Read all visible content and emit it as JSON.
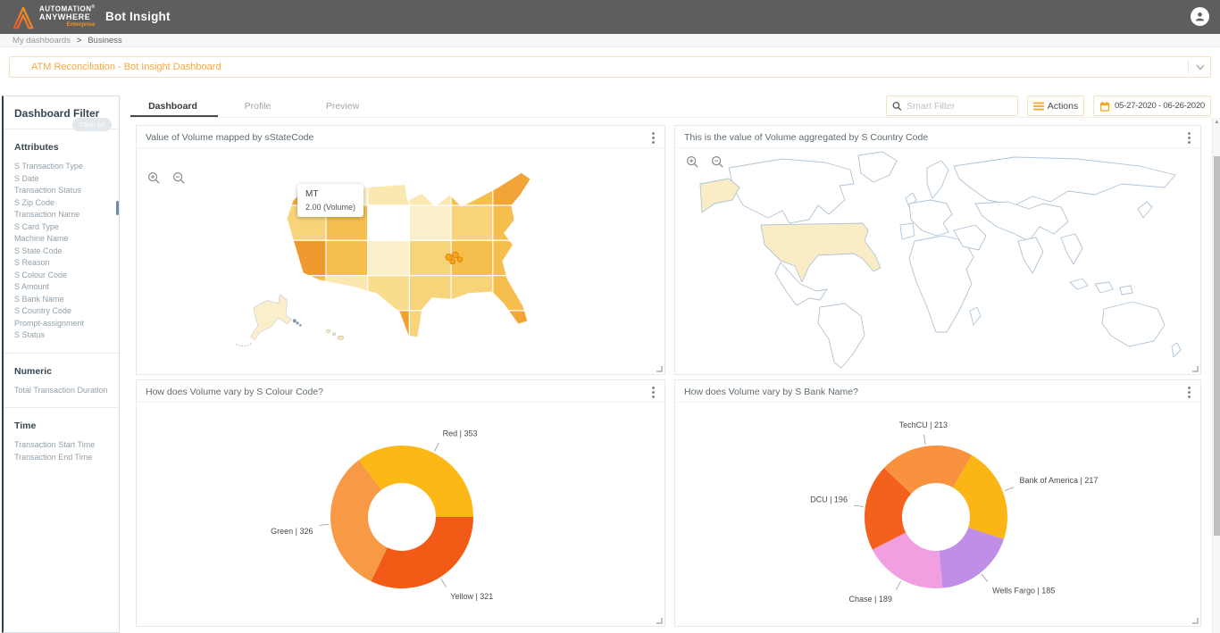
{
  "app": {
    "brand_line1": "AUTOMATION",
    "brand_line2": "ANYWHERE",
    "registered_mark": "®",
    "edition": "Enterprise",
    "module": "Bot Insight"
  },
  "breadcrumb": {
    "items": [
      "My dashboards",
      "Business"
    ],
    "separator": ">"
  },
  "dashboard_selector": {
    "value": "ATM Reconciliation - Bot Insight Dashboard"
  },
  "sidebar": {
    "title": "Dashboard Filter",
    "clear_all_label": "Clear All",
    "sections": [
      {
        "label": "Attributes",
        "items": [
          "S Transaction Type",
          "S Date",
          "Transaction Status",
          "S Zip Code",
          "Transaction Name",
          "S Card Type",
          "Machine Name",
          "S State Code",
          "S Reason",
          "S Colour Code",
          "S Amount",
          "S Bank Name",
          "S Country Code",
          "Prompt-assignment",
          "S Status"
        ]
      },
      {
        "label": "Numeric",
        "items": [
          "Total Transaction Duration"
        ]
      },
      {
        "label": "Time",
        "items": [
          "Transaction Start Time",
          "Transaction End Time"
        ]
      }
    ]
  },
  "tabs": [
    {
      "label": "Dashboard",
      "active": true
    },
    {
      "label": "Profile",
      "active": false
    },
    {
      "label": "Preview",
      "active": false
    }
  ],
  "toolbar": {
    "smart_filter_placeholder": "Smart Filter",
    "actions_label": "Actions",
    "date_range": "05-27-2020 - 06-26-2020"
  },
  "panels": [
    {
      "title": "Value of Volume mapped by sStateCode"
    },
    {
      "title": "This is the value of Volume aggregated by S Country Code"
    },
    {
      "title": "How does Volume vary by S Colour Code?"
    },
    {
      "title": "How does Volume vary by S Bank Name?"
    }
  ],
  "us_map_tooltip": {
    "state": "MT",
    "value_text": "2.00 (Volume)"
  },
  "colors": {
    "topbar": "#5E5E5E",
    "brand_orange": "#F5A623",
    "accent_border": "#F1E2C2",
    "selector_text": "#F8A93F",
    "world_outline": "#AFC3D6",
    "world_highlight": "#FAEDC6"
  },
  "chart_data": [
    {
      "type": "heatmap",
      "subtype": "choropleth-us-states",
      "title": "Value of Volume mapped by sStateCode",
      "metric": "Volume",
      "dimension": "sStateCode",
      "tooltip": {
        "state": "MT",
        "value": 2.0,
        "text": "2.00 (Volume)"
      },
      "selected_state": "KY",
      "palette": [
        "#FCF3D9",
        "#FBEFCB",
        "#FAE8B0",
        "#F9DD8C",
        "#F7D37A",
        "#F5BE4D",
        "#F3A83A",
        "#F2A032",
        "#EE9A2F"
      ]
    },
    {
      "type": "heatmap",
      "subtype": "choropleth-world",
      "title": "This is the value of Volume aggregated by S Country Code",
      "metric": "Volume",
      "dimension": "S Country Code",
      "highlighted_countries": [
        "United States"
      ],
      "highlight_color": "#FAEDC6",
      "outline_color": "#AFC3D6"
    },
    {
      "type": "pie",
      "subtype": "donut",
      "title": "How does Volume vary by S Colour Code?",
      "metric": "Volume",
      "dimension": "S Colour Code",
      "total": 1000,
      "start_angle": -37.1,
      "slices": [
        {
          "name": "Red",
          "value": 353,
          "label": "Red | 353",
          "color": "#FBB817"
        },
        {
          "name": "Yellow",
          "value": 321,
          "label": "Yellow | 321",
          "color": "#F25B16"
        },
        {
          "name": "Green",
          "value": 326,
          "label": "Green | 326",
          "color": "#F89A45"
        }
      ]
    },
    {
      "type": "pie",
      "subtype": "donut",
      "title": "How does Volume vary by S Bank Name?",
      "metric": "Volume",
      "dimension": "S Bank Name",
      "total": 1000,
      "start_angle": 30,
      "slices": [
        {
          "name": "Bank of America",
          "value": 217,
          "label": "Bank of America | 217",
          "color": "#FBB515"
        },
        {
          "name": "Wells Fargo",
          "value": 185,
          "label": "Wells Fargo | 185",
          "color": "#BF8EE8"
        },
        {
          "name": "Chase",
          "value": 189,
          "label": "Chase | 189",
          "color": "#F19FE1"
        },
        {
          "name": "DCU",
          "value": 196,
          "label": "DCU | 196",
          "color": "#F4611C"
        },
        {
          "name": "TechCU",
          "value": 213,
          "label": "TechCU | 213",
          "color": "#F9923E"
        }
      ]
    }
  ]
}
